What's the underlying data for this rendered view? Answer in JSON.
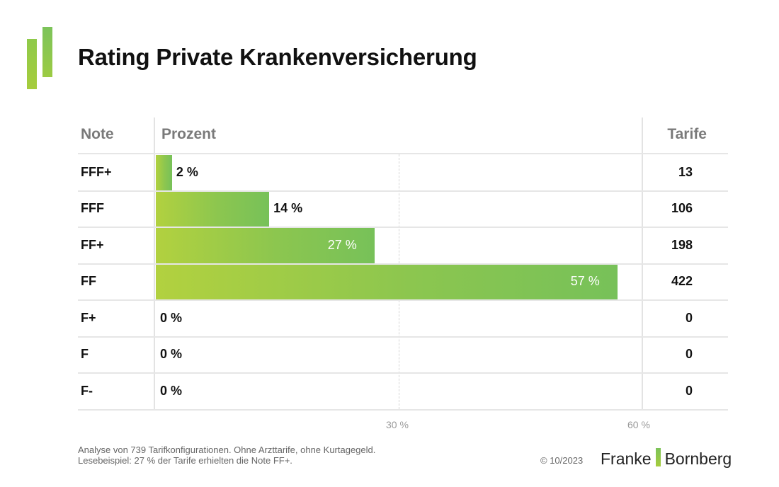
{
  "title": "Rating Private Krankenversicherung",
  "headers": {
    "note": "Note",
    "prozent": "Prozent",
    "tarife": "Tarife"
  },
  "chart_data": {
    "type": "bar",
    "orientation": "horizontal",
    "title": "Rating Private Krankenversicherung",
    "categories": [
      "FFF+",
      "FFF",
      "FF+",
      "FF",
      "F+",
      "F",
      "F-"
    ],
    "values": [
      2,
      14,
      27,
      57,
      0,
      0,
      0
    ],
    "value_labels": [
      "2 %",
      "14 %",
      "27 %",
      "57 %",
      "0 %",
      "0 %",
      "0 %"
    ],
    "tarife": [
      "13",
      "106",
      "198",
      "422",
      "0",
      "0",
      "0"
    ],
    "xlim": [
      0,
      60
    ],
    "xticks": [
      30,
      60
    ],
    "xtick_labels": [
      "30 %",
      "60 %"
    ],
    "colors": {
      "bar_start": "#b2d13f",
      "bar_end": "#77c159"
    }
  },
  "footnote": {
    "line1": "Analyse von 739 Tarifkonfigurationen. Ohne Arzttarife, ohne Kurtagegeld.",
    "line2": "Lesebeispiel: 27 % der Tarife erhielten die Note FF+."
  },
  "copyright": "© 10/2023",
  "brand": {
    "left": "Franke",
    "right": "Bornberg"
  }
}
